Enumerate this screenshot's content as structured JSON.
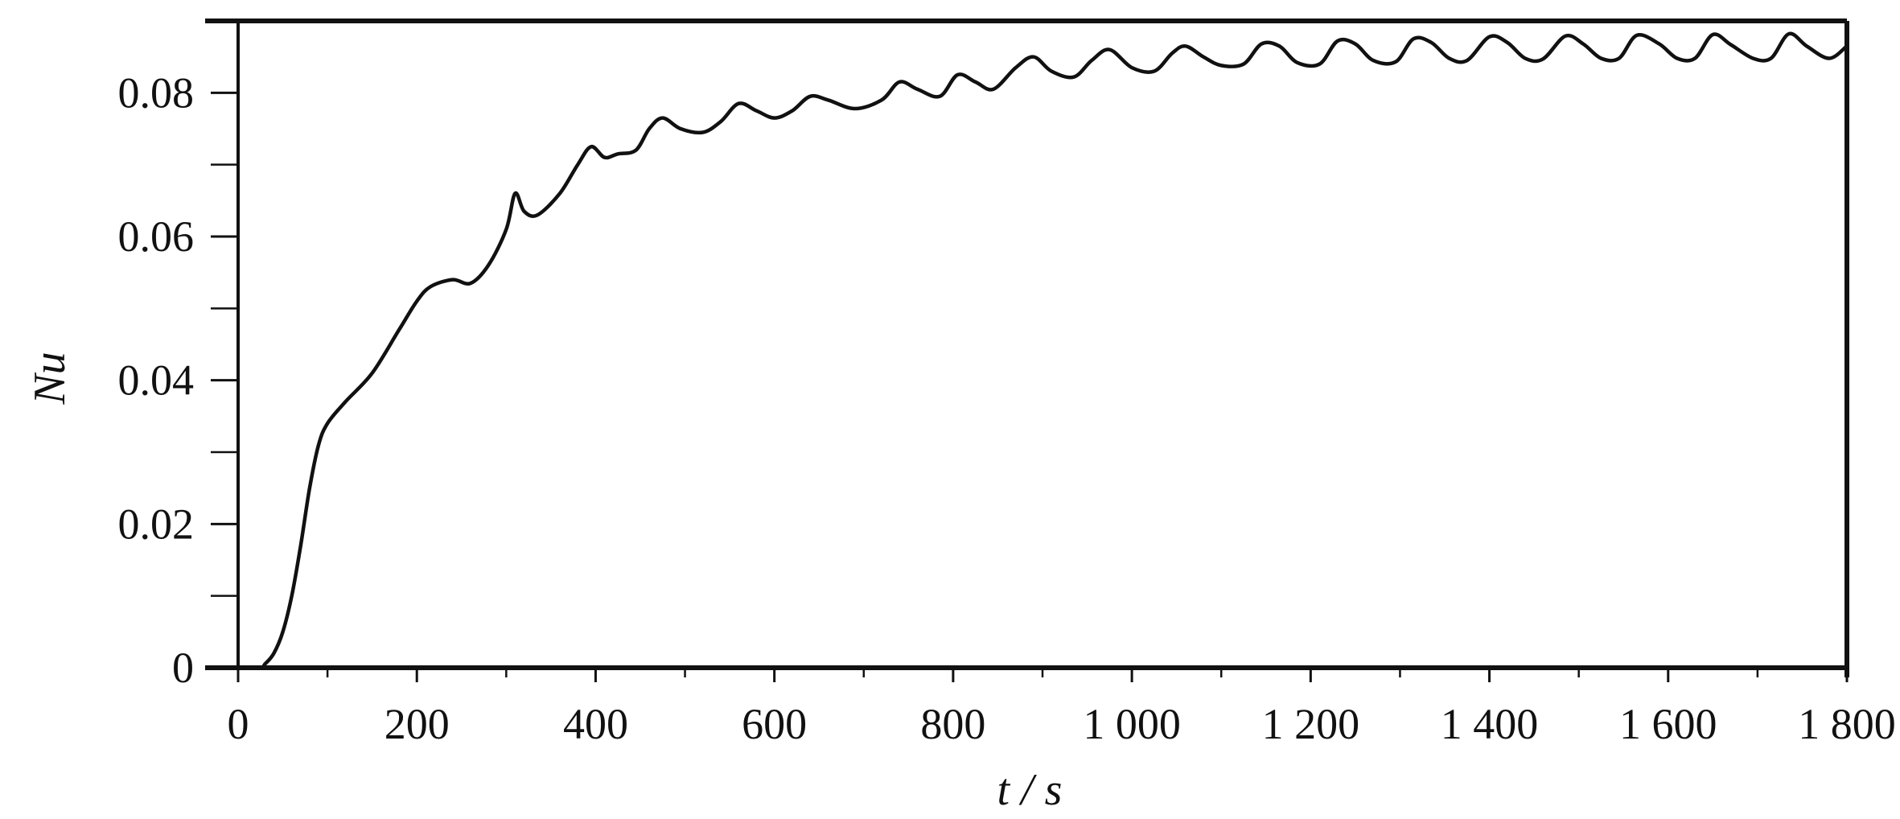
{
  "chart_data": {
    "type": "line",
    "title": "",
    "xlabel": "t / s",
    "ylabel": "Nu",
    "xlim": [
      0,
      1800
    ],
    "ylim": [
      0,
      0.09
    ],
    "x_ticks": [
      0,
      200,
      400,
      600,
      800,
      1000,
      1200,
      1400,
      1600,
      1800
    ],
    "x_tick_labels": [
      "0",
      "200",
      "400",
      "600",
      "800",
      "1 000",
      "1 200",
      "1 400",
      "1 600",
      "1 800"
    ],
    "y_ticks": [
      0,
      0.02,
      0.04,
      0.06,
      0.08
    ],
    "y_tick_labels": [
      "0",
      "0.02",
      "0.04",
      "0.06",
      "0.08"
    ],
    "grid": false,
    "series": [
      {
        "x": [
          0,
          25,
          30,
          40,
          50,
          60,
          70,
          80,
          90,
          100,
          120,
          150,
          180,
          200,
          215,
          240,
          260,
          280,
          300,
          310,
          320,
          335,
          360,
          380,
          395,
          410,
          425,
          445,
          460,
          475,
          495,
          520,
          540,
          560,
          580,
          600,
          620,
          640,
          660,
          690,
          720,
          740,
          760,
          785,
          805,
          825,
          845,
          870,
          890,
          910,
          935,
          955,
          975,
          1000,
          1025,
          1045,
          1060,
          1080,
          1100,
          1125,
          1145,
          1165,
          1185,
          1210,
          1230,
          1250,
          1270,
          1295,
          1315,
          1335,
          1355,
          1375,
          1400,
          1420,
          1440,
          1460,
          1485,
          1505,
          1525,
          1545,
          1565,
          1590,
          1610,
          1630,
          1650,
          1670,
          1695,
          1715,
          1735,
          1755,
          1780,
          1800
        ],
        "y": [
          0,
          0,
          0.0005,
          0.002,
          0.005,
          0.01,
          0.017,
          0.025,
          0.031,
          0.034,
          0.037,
          0.041,
          0.047,
          0.051,
          0.053,
          0.054,
          0.0535,
          0.056,
          0.061,
          0.066,
          0.0635,
          0.063,
          0.066,
          0.07,
          0.0725,
          0.071,
          0.0715,
          0.072,
          0.075,
          0.0765,
          0.075,
          0.0745,
          0.076,
          0.0785,
          0.0775,
          0.0765,
          0.0775,
          0.0795,
          0.079,
          0.0778,
          0.079,
          0.0815,
          0.0805,
          0.0795,
          0.0825,
          0.0815,
          0.0805,
          0.0835,
          0.085,
          0.083,
          0.0822,
          0.0845,
          0.086,
          0.0835,
          0.083,
          0.0855,
          0.0865,
          0.085,
          0.0838,
          0.084,
          0.0868,
          0.0865,
          0.0842,
          0.084,
          0.0872,
          0.0868,
          0.0845,
          0.0843,
          0.0875,
          0.087,
          0.0848,
          0.0845,
          0.0878,
          0.087,
          0.0848,
          0.0847,
          0.0879,
          0.0868,
          0.0848,
          0.0848,
          0.088,
          0.0868,
          0.0848,
          0.0848,
          0.0881,
          0.0867,
          0.0848,
          0.0848,
          0.0882,
          0.0865,
          0.0848,
          0.0865
        ]
      }
    ]
  }
}
